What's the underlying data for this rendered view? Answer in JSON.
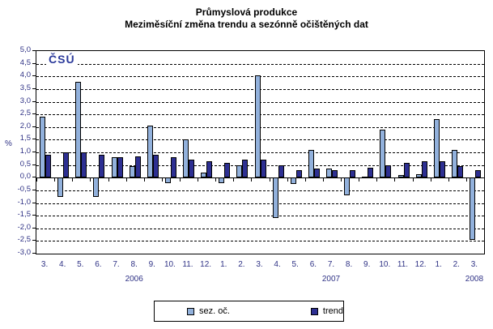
{
  "title": {
    "line1": "Průmyslová produkce",
    "line2": "Meziměsíční změna trendu a sezónně očištěných dat"
  },
  "logo_text": "ČSÚ",
  "y_unit_label": "%",
  "colors": {
    "seasonally_adjusted_fill": "#92B1DC",
    "trend_fill": "#2D2F92",
    "axis_text": "#2F3285",
    "logo": "#2B3A9B",
    "grid": "#000000"
  },
  "chart_data": {
    "type": "bar",
    "title": "Průmyslová produkce",
    "subtitle": "Meziměsíční změna trendu a sezónně očištěných dat",
    "ylabel": "%",
    "ylim": [
      -3.0,
      5.0
    ],
    "ytick_step": 0.5,
    "grid": "horizontal-dashed",
    "legend_position": "bottom",
    "categories": [
      "3.",
      "4.",
      "5.",
      "6.",
      "7.",
      "8.",
      "9.",
      "10.",
      "11.",
      "12.",
      "1.",
      "2.",
      "3.",
      "4.",
      "5.",
      "6.",
      "7.",
      "8.",
      "9.",
      "10.",
      "11.",
      "12.",
      "1.",
      "2.",
      "3."
    ],
    "year_labels": [
      {
        "text": "2006",
        "category_index": 5
      },
      {
        "text": "2007",
        "category_index": 16
      },
      {
        "text": "2008",
        "category_index": 24
      }
    ],
    "series": [
      {
        "name": "sez. oč.",
        "color": "#92B1DC",
        "values": [
          2.4,
          -0.75,
          3.8,
          -0.75,
          0.8,
          0.45,
          2.05,
          -0.2,
          1.5,
          0.2,
          -0.2,
          0.5,
          4.05,
          -1.6,
          -0.25,
          1.1,
          0.35,
          -0.7,
          0.05,
          1.9,
          0.1,
          0.15,
          2.3,
          1.1,
          -2.45
        ]
      },
      {
        "name": "trend",
        "color": "#2D2F92",
        "values": [
          0.9,
          1.0,
          1.0,
          0.9,
          0.8,
          0.85,
          0.9,
          0.8,
          0.7,
          0.65,
          0.6,
          0.7,
          0.7,
          0.5,
          0.3,
          0.35,
          0.3,
          0.3,
          0.4,
          0.5,
          0.6,
          0.65,
          0.65,
          0.45,
          0.3
        ]
      }
    ]
  }
}
